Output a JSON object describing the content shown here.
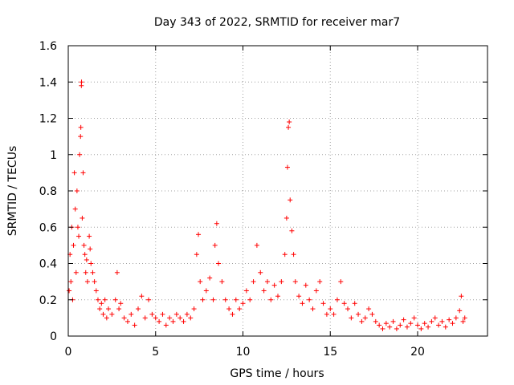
{
  "chart_data": {
    "type": "scatter",
    "title": "Day 343 of 2022, SRMTID for receiver mar7",
    "xlabel": "GPS time / hours",
    "ylabel": "SRMTID / TECUs",
    "xlim": [
      0,
      24
    ],
    "ylim": [
      0,
      1.6
    ],
    "x_ticks": [
      0,
      5,
      10,
      15,
      20
    ],
    "x_tick_labels": [
      "0",
      "5",
      "10",
      "15",
      "20"
    ],
    "y_ticks": [
      0,
      0.2,
      0.4,
      0.6,
      0.8,
      1,
      1.2,
      1.4,
      1.6
    ],
    "y_tick_labels": [
      "0",
      "0.2",
      "0.4",
      "0.6",
      "0.8",
      "1",
      "1.2",
      "1.4",
      "1.6"
    ],
    "grid": true,
    "marker": "+",
    "color": "#ff0000",
    "series": [
      {
        "name": "SRMTID",
        "points": [
          [
            0.05,
            0.25
          ],
          [
            0.1,
            0.45
          ],
          [
            0.15,
            0.3
          ],
          [
            0.2,
            0.6
          ],
          [
            0.25,
            0.2
          ],
          [
            0.3,
            0.5
          ],
          [
            0.35,
            0.9
          ],
          [
            0.4,
            0.7
          ],
          [
            0.45,
            0.35
          ],
          [
            0.5,
            0.8
          ],
          [
            0.55,
            0.6
          ],
          [
            0.6,
            0.55
          ],
          [
            0.65,
            1.0
          ],
          [
            0.7,
            1.1
          ],
          [
            0.72,
            1.15
          ],
          [
            0.75,
            1.38
          ],
          [
            0.76,
            1.4
          ],
          [
            0.8,
            0.65
          ],
          [
            0.85,
            0.9
          ],
          [
            0.9,
            0.5
          ],
          [
            0.95,
            0.45
          ],
          [
            1.0,
            0.35
          ],
          [
            1.05,
            0.42
          ],
          [
            1.1,
            0.3
          ],
          [
            1.2,
            0.55
          ],
          [
            1.25,
            0.48
          ],
          [
            1.3,
            0.4
          ],
          [
            1.4,
            0.35
          ],
          [
            1.5,
            0.3
          ],
          [
            1.6,
            0.25
          ],
          [
            1.7,
            0.2
          ],
          [
            1.8,
            0.15
          ],
          [
            1.9,
            0.18
          ],
          [
            2.0,
            0.12
          ],
          [
            2.1,
            0.2
          ],
          [
            2.2,
            0.1
          ],
          [
            2.3,
            0.15
          ],
          [
            2.5,
            0.12
          ],
          [
            2.7,
            0.2
          ],
          [
            2.8,
            0.35
          ],
          [
            2.9,
            0.15
          ],
          [
            3.0,
            0.18
          ],
          [
            3.2,
            0.1
          ],
          [
            3.4,
            0.08
          ],
          [
            3.6,
            0.12
          ],
          [
            3.8,
            0.06
          ],
          [
            4.0,
            0.15
          ],
          [
            4.2,
            0.22
          ],
          [
            4.4,
            0.1
          ],
          [
            4.6,
            0.2
          ],
          [
            4.8,
            0.12
          ],
          [
            5.0,
            0.1
          ],
          [
            5.2,
            0.08
          ],
          [
            5.4,
            0.12
          ],
          [
            5.6,
            0.06
          ],
          [
            5.8,
            0.1
          ],
          [
            6.0,
            0.08
          ],
          [
            6.2,
            0.12
          ],
          [
            6.4,
            0.1
          ],
          [
            6.6,
            0.08
          ],
          [
            6.8,
            0.12
          ],
          [
            7.0,
            0.1
          ],
          [
            7.2,
            0.15
          ],
          [
            7.35,
            0.45
          ],
          [
            7.45,
            0.56
          ],
          [
            7.55,
            0.3
          ],
          [
            7.7,
            0.2
          ],
          [
            7.9,
            0.25
          ],
          [
            8.1,
            0.32
          ],
          [
            8.3,
            0.2
          ],
          [
            8.4,
            0.5
          ],
          [
            8.5,
            0.62
          ],
          [
            8.6,
            0.4
          ],
          [
            8.8,
            0.3
          ],
          [
            9.0,
            0.2
          ],
          [
            9.2,
            0.15
          ],
          [
            9.4,
            0.12
          ],
          [
            9.6,
            0.2
          ],
          [
            9.8,
            0.15
          ],
          [
            10.0,
            0.18
          ],
          [
            10.2,
            0.25
          ],
          [
            10.4,
            0.2
          ],
          [
            10.6,
            0.3
          ],
          [
            10.8,
            0.5
          ],
          [
            11.0,
            0.35
          ],
          [
            11.2,
            0.25
          ],
          [
            11.4,
            0.3
          ],
          [
            11.6,
            0.2
          ],
          [
            11.8,
            0.28
          ],
          [
            12.0,
            0.22
          ],
          [
            12.2,
            0.3
          ],
          [
            12.4,
            0.45
          ],
          [
            12.5,
            0.65
          ],
          [
            12.55,
            0.93
          ],
          [
            12.6,
            1.15
          ],
          [
            12.65,
            1.18
          ],
          [
            12.7,
            0.75
          ],
          [
            12.8,
            0.58
          ],
          [
            12.9,
            0.45
          ],
          [
            13.0,
            0.3
          ],
          [
            13.2,
            0.22
          ],
          [
            13.4,
            0.18
          ],
          [
            13.6,
            0.28
          ],
          [
            13.8,
            0.2
          ],
          [
            14.0,
            0.15
          ],
          [
            14.2,
            0.25
          ],
          [
            14.4,
            0.3
          ],
          [
            14.6,
            0.18
          ],
          [
            14.8,
            0.12
          ],
          [
            15.0,
            0.15
          ],
          [
            15.2,
            0.12
          ],
          [
            15.4,
            0.2
          ],
          [
            15.6,
            0.3
          ],
          [
            15.8,
            0.18
          ],
          [
            16.0,
            0.15
          ],
          [
            16.2,
            0.1
          ],
          [
            16.4,
            0.18
          ],
          [
            16.6,
            0.12
          ],
          [
            16.8,
            0.08
          ],
          [
            17.0,
            0.1
          ],
          [
            17.2,
            0.15
          ],
          [
            17.4,
            0.12
          ],
          [
            17.6,
            0.08
          ],
          [
            17.8,
            0.06
          ],
          [
            18.0,
            0.04
          ],
          [
            18.2,
            0.07
          ],
          [
            18.4,
            0.05
          ],
          [
            18.6,
            0.08
          ],
          [
            18.8,
            0.04
          ],
          [
            19.0,
            0.06
          ],
          [
            19.2,
            0.09
          ],
          [
            19.4,
            0.05
          ],
          [
            19.6,
            0.07
          ],
          [
            19.8,
            0.1
          ],
          [
            20.0,
            0.06
          ],
          [
            20.2,
            0.04
          ],
          [
            20.4,
            0.07
          ],
          [
            20.6,
            0.05
          ],
          [
            20.8,
            0.08
          ],
          [
            21.0,
            0.1
          ],
          [
            21.2,
            0.06
          ],
          [
            21.4,
            0.08
          ],
          [
            21.6,
            0.05
          ],
          [
            21.8,
            0.09
          ],
          [
            22.0,
            0.07
          ],
          [
            22.2,
            0.1
          ],
          [
            22.4,
            0.14
          ],
          [
            22.5,
            0.22
          ],
          [
            22.6,
            0.08
          ],
          [
            22.7,
            0.1
          ]
        ]
      }
    ]
  }
}
